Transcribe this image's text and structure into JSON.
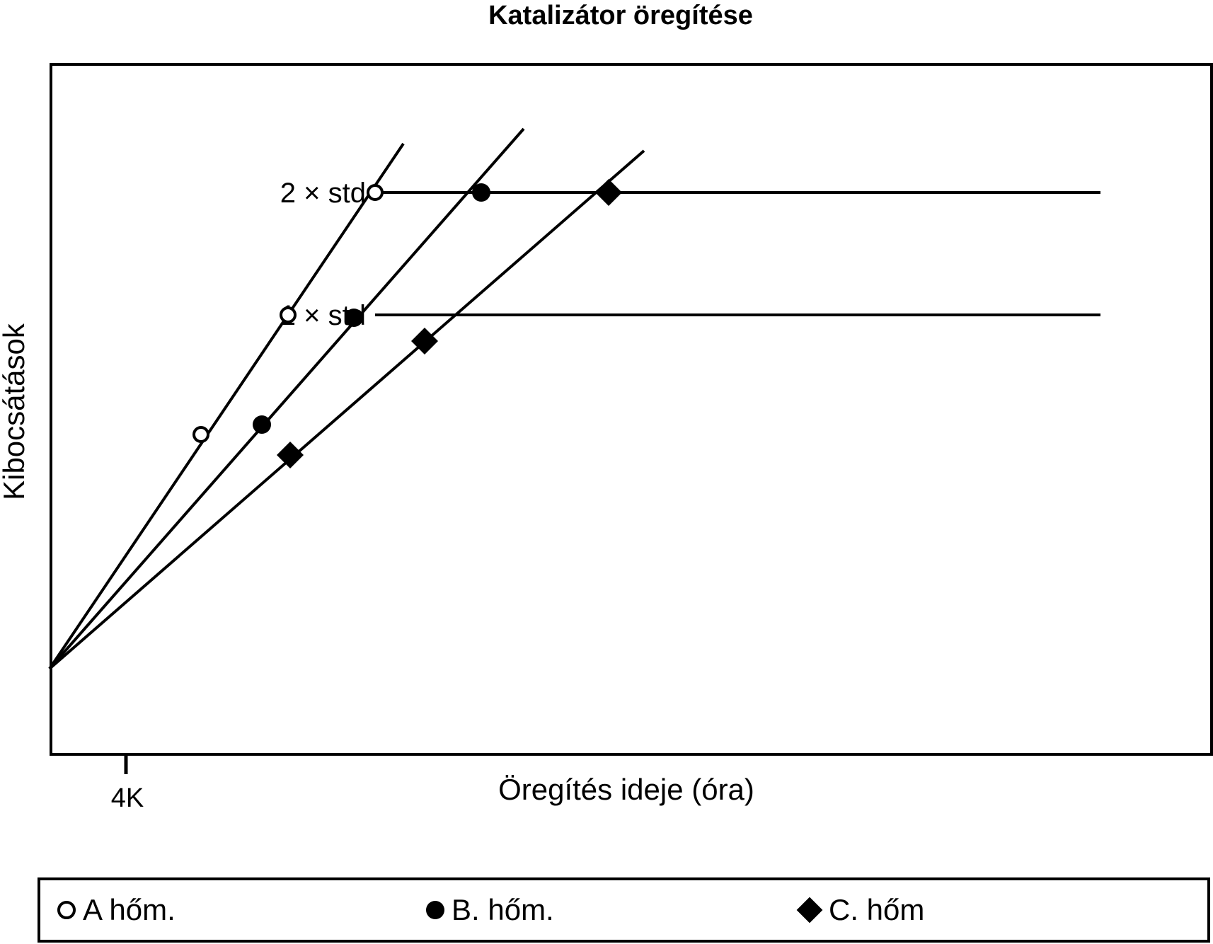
{
  "chart_data": {
    "type": "line",
    "title": "Katalizátor öregítése",
    "xlabel": "Öregítés ideje (óra)",
    "ylabel": "Kibocsátások",
    "x_ticks": [
      "4K"
    ],
    "xlim": [
      0,
      10
    ],
    "ylim": [
      0,
      10
    ],
    "reference_lines": [
      {
        "label": "1 × std",
        "y": 5.0
      },
      {
        "label": "2 × std",
        "y": 6.73
      }
    ],
    "series": [
      {
        "name": "A hőm.",
        "marker": "open-circle",
        "line": [
          [
            0,
            0
          ],
          [
            5.0,
            7.42
          ]
        ],
        "points": [
          [
            2.14,
            3.31
          ],
          [
            3.37,
            5.0
          ],
          [
            4.6,
            6.73
          ]
        ]
      },
      {
        "name": "B. hőm.",
        "marker": "filled-circle",
        "line": [
          [
            0,
            0
          ],
          [
            6.7,
            7.63
          ]
        ],
        "points": [
          [
            3.0,
            3.45
          ],
          [
            4.3,
            4.96
          ],
          [
            6.1,
            6.73
          ]
        ]
      },
      {
        "name": "C. hőm",
        "marker": "diamond",
        "line": [
          [
            0,
            0
          ],
          [
            8.4,
            7.32
          ]
        ],
        "points": [
          [
            3.4,
            3.02
          ],
          [
            5.3,
            4.63
          ],
          [
            7.9,
            6.73
          ]
        ]
      }
    ],
    "grid": false,
    "legend_placement": "bottom"
  },
  "legend": {
    "items": [
      {
        "label": "A hőm.",
        "marker": "open-circle"
      },
      {
        "label": "B. hőm.",
        "marker": "filled-circle"
      },
      {
        "label": "C. hőm",
        "marker": "diamond"
      }
    ]
  }
}
